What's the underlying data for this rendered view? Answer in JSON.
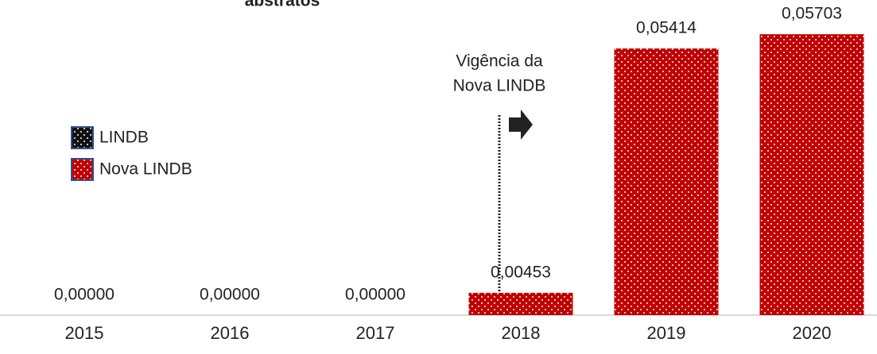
{
  "chart_data": {
    "type": "bar",
    "title": "abstratos",
    "categories": [
      "2015",
      "2016",
      "2017",
      "2018",
      "2019",
      "2020"
    ],
    "series": [
      {
        "name": "LINDB",
        "color": "#111111",
        "values": [
          0,
          0,
          0,
          null,
          null,
          null
        ],
        "value_labels": [
          "0,00000",
          "0,00000",
          "0,00000",
          null,
          null,
          null
        ]
      },
      {
        "name": "Nova LINDB",
        "color": "#c00000",
        "values": [
          null,
          null,
          null,
          0.00453,
          0.05414,
          0.05703
        ],
        "value_labels": [
          null,
          null,
          null,
          "0,00453",
          "0,05414",
          "0,05703"
        ]
      }
    ],
    "ylim": [
      0,
      0.0635
    ],
    "annotation": [
      "Vigência da",
      "Nova LINDB"
    ],
    "legend": "left"
  }
}
